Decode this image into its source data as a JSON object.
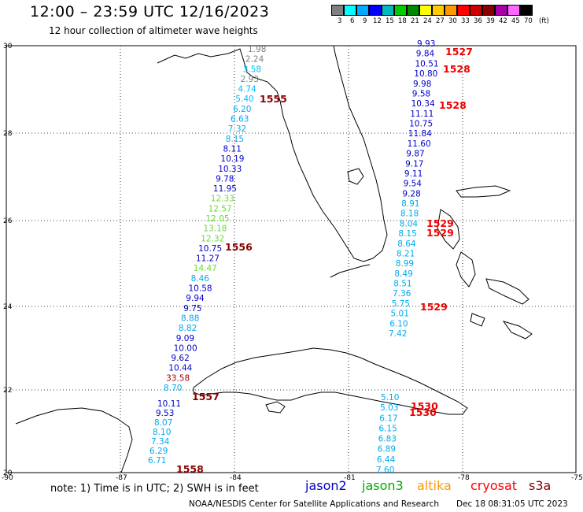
{
  "header": {
    "title": "12:00 – 23:59 UTC 12/16/2023",
    "subtitle": "12 hour collection of altimeter wave heights"
  },
  "colorbar": {
    "unit": "(ft)",
    "ticks": [
      "3",
      "6",
      "9",
      "12",
      "15",
      "18",
      "21",
      "24",
      "27",
      "30",
      "33",
      "36",
      "39",
      "42",
      "45",
      "70"
    ],
    "colors": [
      "#7f7f7f",
      "#00ffff",
      "#00aaff",
      "#0000ff",
      "#00bbbb",
      "#00cc00",
      "#008800",
      "#ffff00",
      "#ffcc00",
      "#ff9900",
      "#ff0000",
      "#cc0000",
      "#880000",
      "#aa00aa",
      "#ff66ff",
      "#000000"
    ]
  },
  "map": {
    "lat_labels": [
      "30",
      "28",
      "26",
      "24",
      "22",
      "20"
    ],
    "lon_labels": [
      "-90",
      "-87",
      "-84",
      "-81",
      "-78",
      "-75"
    ]
  },
  "tracks": {
    "west": [
      {
        "v": "1.98",
        "c": "#7f7f7f"
      },
      {
        "v": "2.24",
        "c": "#7f7f7f"
      },
      {
        "v": "3.58",
        "c": "#00bbff"
      },
      {
        "v": "2.93",
        "c": "#7f7f7f"
      },
      {
        "v": "4.74",
        "c": "#00bbff"
      },
      {
        "v": "5.40",
        "c": "#00bbff"
      },
      {
        "v": "6.20",
        "c": "#00aaee"
      },
      {
        "v": "6.63",
        "c": "#00aaee"
      },
      {
        "v": "7.32",
        "c": "#00aaee"
      },
      {
        "v": "8.15",
        "c": "#00aaee"
      },
      {
        "v": "8.11",
        "c": "#0000cc"
      },
      {
        "v": "10.19",
        "c": "#0000cc"
      },
      {
        "v": "10.33",
        "c": "#0000cc"
      },
      {
        "v": "9.78",
        "c": "#0000cc"
      },
      {
        "v": "11.95",
        "c": "#0000cc"
      },
      {
        "v": "12.33",
        "c": "#66dd33"
      },
      {
        "v": "12.57",
        "c": "#66dd33"
      },
      {
        "v": "12.05",
        "c": "#66dd33"
      },
      {
        "v": "13.18",
        "c": "#66dd33"
      },
      {
        "v": "12.32",
        "c": "#66dd33"
      },
      {
        "v": "10.75",
        "c": "#0000cc"
      },
      {
        "v": "11.27",
        "c": "#0000cc"
      },
      {
        "v": "14.47",
        "c": "#66dd33"
      },
      {
        "v": "8.46",
        "c": "#00aaee"
      },
      {
        "v": "10.58",
        "c": "#0000cc"
      },
      {
        "v": "9.94",
        "c": "#0000cc"
      },
      {
        "v": "9.75",
        "c": "#0000cc"
      },
      {
        "v": "8.88",
        "c": "#00aaee"
      },
      {
        "v": "8.82",
        "c": "#00aaee"
      },
      {
        "v": "9.09",
        "c": "#0000cc"
      },
      {
        "v": "10.00",
        "c": "#0000cc"
      },
      {
        "v": "9.62",
        "c": "#0000cc"
      },
      {
        "v": "10.44",
        "c": "#0000cc"
      },
      {
        "v": "33.58",
        "c": "#aa0000"
      },
      {
        "v": "8.70",
        "c": "#00aaee"
      }
    ],
    "southwest": [
      {
        "v": "10.11",
        "c": "#0000cc"
      },
      {
        "v": "9.53",
        "c": "#0000cc"
      },
      {
        "v": "8.07",
        "c": "#00aaee"
      },
      {
        "v": "8.10",
        "c": "#00aaee"
      },
      {
        "v": "7.34",
        "c": "#00aaee"
      },
      {
        "v": "6.29",
        "c": "#00aaee"
      },
      {
        "v": "6.71",
        "c": "#00aaee"
      }
    ],
    "east": [
      {
        "v": "9.93",
        "c": "#0000cc"
      },
      {
        "v": "9.84",
        "c": "#0000cc"
      },
      {
        "v": "10.51",
        "c": "#0000cc"
      },
      {
        "v": "10.80",
        "c": "#0000cc"
      },
      {
        "v": "9.98",
        "c": "#0000cc"
      },
      {
        "v": "9.58",
        "c": "#0000cc"
      },
      {
        "v": "10.34",
        "c": "#0000cc"
      },
      {
        "v": "11.11",
        "c": "#0000cc"
      },
      {
        "v": "10.75",
        "c": "#0000cc"
      },
      {
        "v": "11.84",
        "c": "#0000cc"
      },
      {
        "v": "11.60",
        "c": "#0000cc"
      },
      {
        "v": "9.87",
        "c": "#0000cc"
      },
      {
        "v": "9.17",
        "c": "#0000cc"
      },
      {
        "v": "9.11",
        "c": "#0000cc"
      },
      {
        "v": "9.54",
        "c": "#0000cc"
      },
      {
        "v": "9.28",
        "c": "#0000cc"
      },
      {
        "v": "8.91",
        "c": "#00aaee"
      },
      {
        "v": "8.18",
        "c": "#00aaee"
      },
      {
        "v": "8.04",
        "c": "#00aaee"
      },
      {
        "v": "8.15",
        "c": "#00aaee"
      },
      {
        "v": "8.64",
        "c": "#00aaee"
      },
      {
        "v": "8.21",
        "c": "#00aaee"
      },
      {
        "v": "8.99",
        "c": "#00aaee"
      },
      {
        "v": "8.49",
        "c": "#00aaee"
      },
      {
        "v": "8.51",
        "c": "#00aaee"
      },
      {
        "v": "7.36",
        "c": "#00aaee"
      },
      {
        "v": "5.75",
        "c": "#00aaee"
      },
      {
        "v": "5.01",
        "c": "#00aaee"
      },
      {
        "v": "6.10",
        "c": "#00aaee"
      },
      {
        "v": "7.42",
        "c": "#00aaee"
      }
    ],
    "southeast": [
      {
        "v": "5.10",
        "c": "#00aaee"
      },
      {
        "v": "5.03",
        "c": "#00aaee"
      },
      {
        "v": "6.17",
        "c": "#00aaee"
      },
      {
        "v": "6.15",
        "c": "#00aaee"
      },
      {
        "v": "6.83",
        "c": "#00aaee"
      },
      {
        "v": "6.89",
        "c": "#00aaee"
      },
      {
        "v": "6.44",
        "c": "#00aaee"
      },
      {
        "v": "7.60",
        "c": "#00aaee"
      }
    ]
  },
  "pass_times": [
    {
      "t": "1527",
      "c": "#ee0000"
    },
    {
      "t": "1528",
      "c": "#ee0000"
    },
    {
      "t": "1528",
      "c": "#ee0000"
    },
    {
      "t": "1555",
      "c": "#880000"
    },
    {
      "t": "1529",
      "c": "#ee0000"
    },
    {
      "t": "1529",
      "c": "#ee0000"
    },
    {
      "t": "1556",
      "c": "#880000"
    },
    {
      "t": "1529",
      "c": "#ee0000"
    },
    {
      "t": "1557",
      "c": "#880000"
    },
    {
      "t": "1530",
      "c": "#ee0000"
    },
    {
      "t": "1530",
      "c": "#ee0000"
    },
    {
      "t": "1558",
      "c": "#880000"
    }
  ],
  "footer": {
    "note": "note:  1) Time is in UTC;  2) SWH is in feet",
    "legend": [
      {
        "label": "jason2",
        "color": "#0000cc"
      },
      {
        "label": "jason3",
        "color": "#00aa00"
      },
      {
        "label": "altika",
        "color": "#ff9900"
      },
      {
        "label": "cryosat",
        "color": "#ff0000"
      },
      {
        "label": "s3a",
        "color": "#880000"
      }
    ],
    "credit": "NOAA/NESDIS Center for Satellite Applications and Research",
    "timestamp": "Dec 18 08:31:05 UTC 2023"
  }
}
